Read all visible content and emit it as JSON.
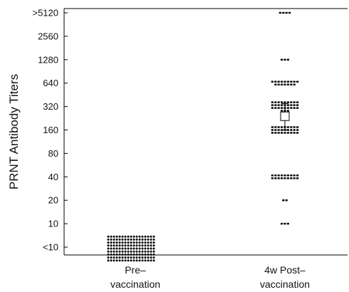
{
  "chart_data": {
    "type": "scatter",
    "subtype": "dot-strip",
    "title": "",
    "ylabel": "PRNT Antibody Titers",
    "xlabel": "",
    "y_scale": "log2",
    "y_ticks": [
      "<10",
      "10",
      "20",
      "40",
      "80",
      "160",
      "320",
      "640",
      "1280",
      "2560",
      ">5120"
    ],
    "categories": [
      {
        "line1": "Pre–",
        "line2": "vaccination"
      },
      {
        "line1": "4w Post–",
        "line2": "vaccination"
      }
    ],
    "grid": false,
    "legend": "none",
    "series": [
      {
        "category_index": 0,
        "groups": [
          {
            "titer": "<10",
            "count": 153
          }
        ]
      },
      {
        "category_index": 1,
        "groups": [
          {
            "titer": 10,
            "count": 3
          },
          {
            "titer": 20,
            "count": 2
          },
          {
            "titer": 40,
            "count": 18
          },
          {
            "titer": 160,
            "count": 27
          },
          {
            "titer": 320,
            "count": 30
          },
          {
            "titer": 640,
            "count": 16
          },
          {
            "titer": 1280,
            "count": 3
          },
          {
            "titer": ">5120",
            "count": 4
          }
        ],
        "mean_titer": 240,
        "ci": [
          160,
          350
        ]
      }
    ]
  }
}
